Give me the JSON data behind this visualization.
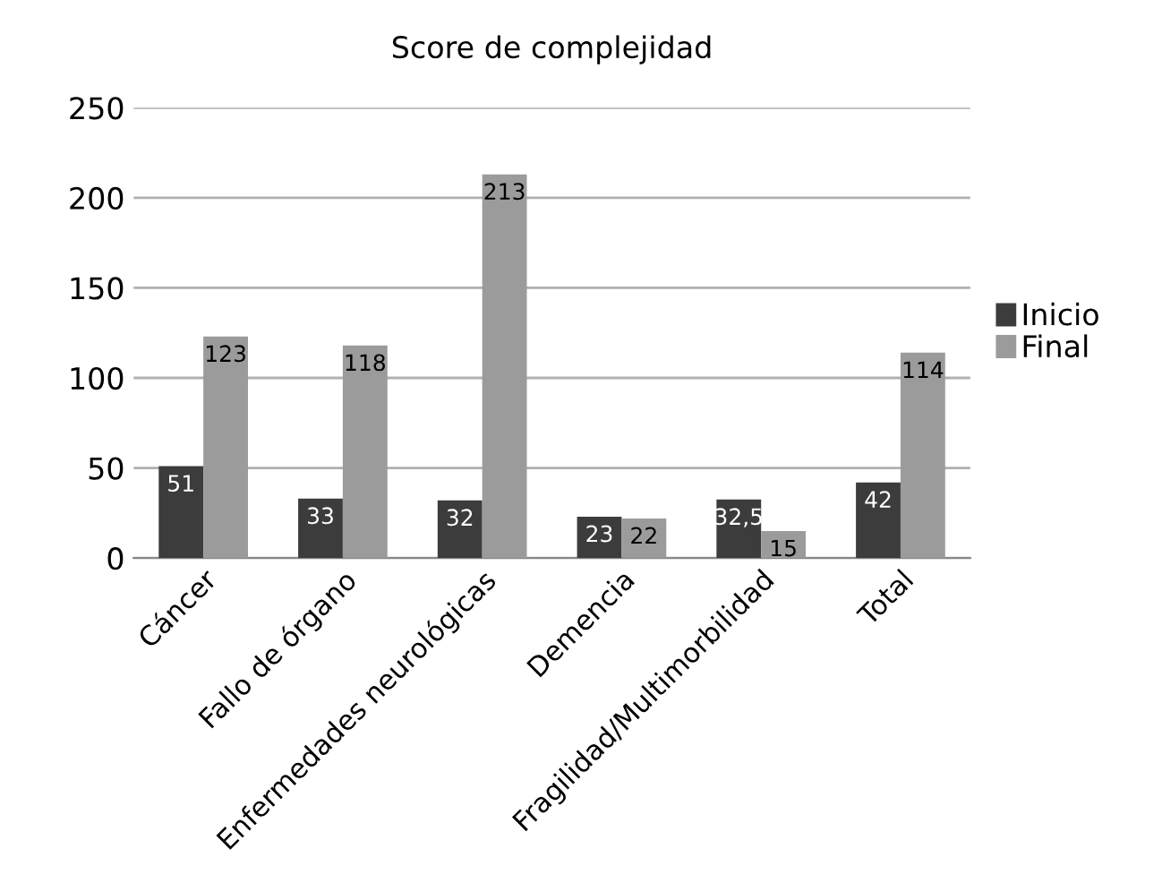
{
  "chart_data": {
    "type": "bar",
    "title": "Score de complejidad",
    "categories": [
      "Cáncer",
      "Fallo de órgano",
      "Enfermedades neurológicas",
      "Demencia",
      "Fragilidad/Multimorbilidad",
      "Total"
    ],
    "series": [
      {
        "name": "Inicio",
        "color": "#3c3c3c",
        "values": [
          51,
          33,
          32,
          23,
          32.5,
          42
        ],
        "value_labels": [
          "51",
          "33",
          "32",
          "23",
          "32,5",
          "42"
        ]
      },
      {
        "name": "Final",
        "color": "#9b9b9b",
        "values": [
          123,
          118,
          213,
          22,
          15,
          114
        ],
        "value_labels": [
          "123",
          "118",
          "213",
          "22",
          "15",
          "114"
        ]
      }
    ],
    "ylim": [
      0,
      250
    ],
    "yticks": [
      0,
      50,
      100,
      150,
      200,
      250
    ],
    "grid": "y",
    "legend": "right"
  }
}
